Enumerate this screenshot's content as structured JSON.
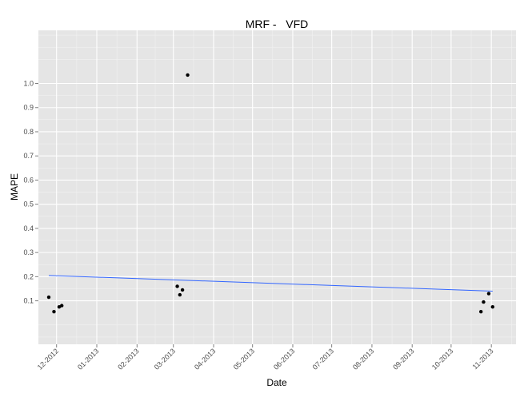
{
  "chart_data": {
    "type": "scatter",
    "title": "MRF -   VFD",
    "xlabel": "Date",
    "ylabel": "MAPE",
    "x_ticks": [
      "12-2012",
      "01-2013",
      "02-2013",
      "03-2013",
      "04-2013",
      "05-2013",
      "06-2013",
      "07-2013",
      "08-2013",
      "09-2013",
      "10-2013",
      "11-2013"
    ],
    "y_ticks": [
      "0.1",
      "0.2",
      "0.3",
      "0.4",
      "0.5",
      "0.6",
      "0.7",
      "0.8",
      "0.9",
      "1.0"
    ],
    "ylim": [
      -0.08,
      1.22
    ],
    "xlim": [
      "2012-11-17",
      "2013-11-20"
    ],
    "grid": true,
    "background": "#e5e5e5",
    "grid_color": "#ffffff",
    "point_color": "#000000",
    "trend_color": "#3366ff",
    "series": [
      {
        "points": [
          {
            "x": "2012-11-25",
            "y": 0.115
          },
          {
            "x": "2012-11-29",
            "y": 0.055
          },
          {
            "x": "2012-12-03",
            "y": 0.075
          },
          {
            "x": "2012-12-05",
            "y": 0.08
          },
          {
            "x": "2013-03-04",
            "y": 0.16
          },
          {
            "x": "2013-03-06",
            "y": 0.125
          },
          {
            "x": "2013-03-08",
            "y": 0.145
          },
          {
            "x": "2013-03-12",
            "y": 1.035
          },
          {
            "x": "2013-10-24",
            "y": 0.055
          },
          {
            "x": "2013-10-26",
            "y": 0.095
          },
          {
            "x": "2013-10-30",
            "y": 0.13
          },
          {
            "x": "2013-11-02",
            "y": 0.075
          }
        ]
      }
    ],
    "trend_line": {
      "x": [
        "2012-11-25",
        "2013-11-02"
      ],
      "y": [
        0.205,
        0.14
      ]
    }
  }
}
